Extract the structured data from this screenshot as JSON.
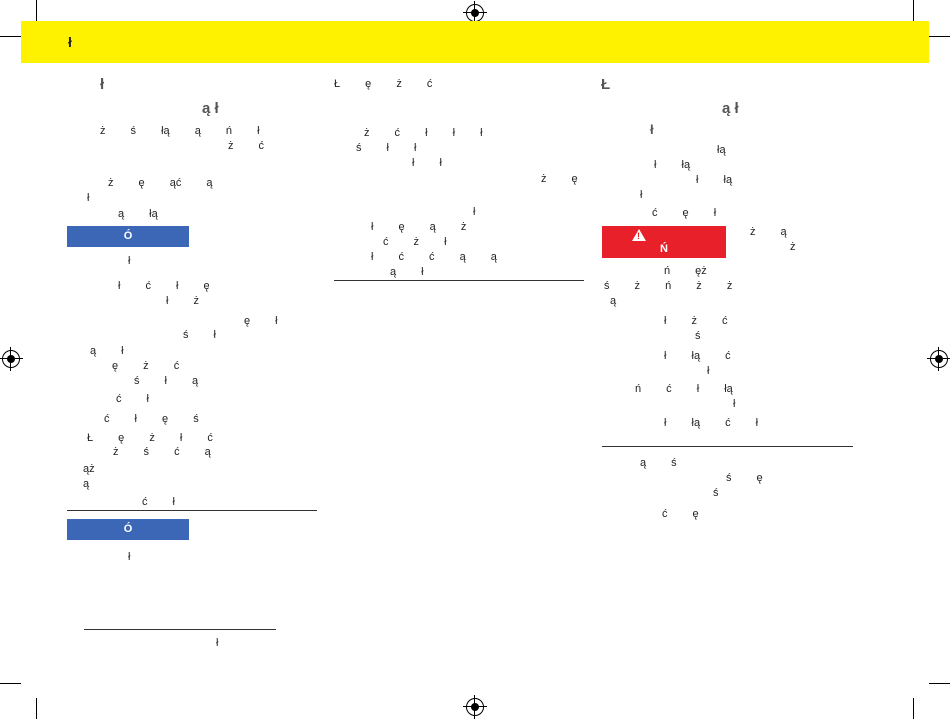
{
  "header": {
    "title": "ł"
  },
  "left": {
    "heading1": "ł",
    "heading2": "ą ł",
    "lines": [
      "ż ś łą ą ń ł",
      "ż ć",
      "ż ę ąć ą",
      "ł",
      "ą łą"
    ],
    "note1_label": "Ó",
    "note1_lines": [
      "ł",
      "ł ć ł ę",
      "ł ż",
      "ę ł",
      "ś ł",
      "ą ł",
      "ę ż ć",
      "ś ł ą",
      "ć ł",
      "ć ł ę ś",
      "Ł ę ż ł ć",
      "ż ś ć ą",
      "ąż",
      "ą",
      "ć ł"
    ],
    "note2_label": "Ó",
    "note2_line": "ł",
    "footnote": "ł"
  },
  "middle": {
    "lines": [
      "Ł ę ż ć",
      "ż ć ł ł ł",
      "ś ł ł",
      "ł ł",
      "ż ę",
      "ł",
      "ł ę ą ż",
      "ć ż ł",
      "ł ć ć ą ą",
      "ą ł"
    ]
  },
  "right": {
    "heading1": "Ł",
    "heading2": "ą ł",
    "subheading": "ł",
    "lines": [
      "łą",
      "ł łą",
      "ł łą",
      "ł",
      "ć ę ł"
    ],
    "warning_label": "Ń",
    "warning_side": [
      "ż ą",
      "ż"
    ],
    "lines2": [
      "ń ęż",
      "ś ż ń ż ż",
      "ą",
      "ł ż ć",
      "ś",
      "ł łą ć",
      "ł",
      "ń ć ł łą",
      "ł",
      "ł łą ć ł"
    ],
    "lines3": [
      "ą ś",
      "ś ę",
      "ś",
      "ć ę"
    ]
  }
}
